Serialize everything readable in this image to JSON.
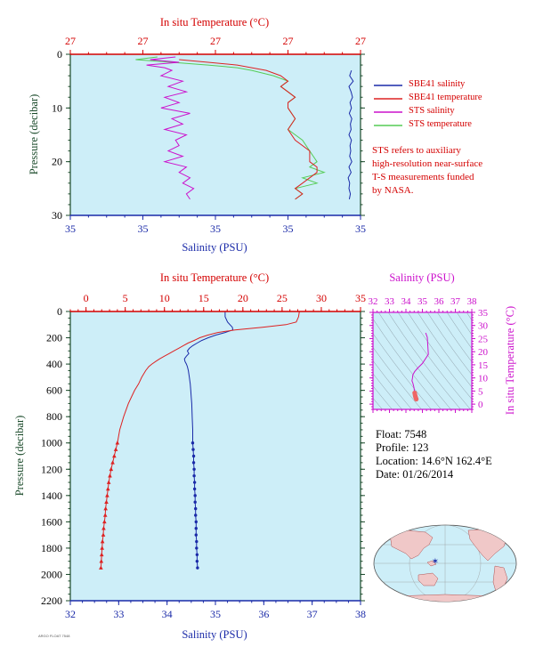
{
  "colors": {
    "salinity": "#1a2aa8",
    "temperature": "#dd2222",
    "sts_salinity": "#cc11cc",
    "sts_temperature": "#55cc55",
    "panel_bg": "#cdeef8",
    "axis_dark": "#1a4a2a",
    "axis_red": "#d40000",
    "axis_blue": "#1a2aa8",
    "axis_magenta": "#cc11cc"
  },
  "float_info": {
    "float": "Float:  7548",
    "profile": "Profile:  123",
    "location": "Location:  14.6°N  162.4°E",
    "date": "Date:  01/26/2014"
  },
  "legend": [
    {
      "label": "SBE41 salinity",
      "color": "#1a2aa8"
    },
    {
      "label": "SBE41 temperature",
      "color": "#dd2222"
    },
    {
      "label": "STS salinity",
      "color": "#cc11cc"
    },
    {
      "label": "STS temperature",
      "color": "#55cc55"
    }
  ],
  "note": [
    "STS refers to auxiliary",
    "high-resolution near-surface",
    "T-S measurements funded",
    "by NASA."
  ],
  "footer_tag": "ARGO FLOAT 7548",
  "chart_data": [
    {
      "type": "line",
      "title": "In situ Temperature (°C)",
      "xlabel": "Salinity (PSU)",
      "ylabel": "Pressure (decibar)",
      "x_ticks": [
        "35",
        "35",
        "35",
        "35",
        "35"
      ],
      "x2_ticks": [
        "27",
        "27",
        "27",
        "27",
        "27"
      ],
      "y_ticks": [
        0,
        10,
        20,
        30
      ],
      "ylim": [
        30,
        0
      ],
      "salinity_xlim": [
        34.98,
        35.06
      ],
      "temperature_xlim": [
        26.8,
        27.2
      ],
      "grid": false,
      "legend": "right",
      "series": [
        {
          "name": "SBE41 salinity",
          "pressure": [
            3,
            4,
            5,
            6,
            7,
            8,
            9,
            10,
            11,
            12,
            13,
            14,
            15,
            16,
            17,
            18,
            19,
            20,
            21,
            22,
            23,
            24,
            25,
            26,
            27
          ],
          "values": [
            35.0575,
            35.057,
            35.058,
            35.0568,
            35.0574,
            35.0578,
            35.0571,
            35.0575,
            35.0569,
            35.0576,
            35.0572,
            35.0574,
            35.0568,
            35.0575,
            35.0571,
            35.0573,
            35.057,
            35.0576,
            35.0568,
            35.0574,
            35.0566,
            35.057,
            35.0568,
            35.0572,
            35.0569
          ]
        },
        {
          "name": "SBE41 temperature",
          "pressure": [
            1,
            1.5,
            2,
            2.5,
            3,
            4,
            5,
            6,
            7,
            8,
            9,
            10,
            12,
            14,
            16,
            18,
            20,
            21,
            22,
            23,
            24,
            25,
            26,
            27
          ],
          "values": [
            26.95,
            26.99,
            27.03,
            27.05,
            27.07,
            27.09,
            27.1,
            27.09,
            27.1,
            27.11,
            27.1,
            27.1,
            27.11,
            27.1,
            27.11,
            27.13,
            27.13,
            27.14,
            27.14,
            27.13,
            27.12,
            27.11,
            27.12,
            27.11
          ]
        },
        {
          "name": "STS salinity",
          "pressure": [
            0.5,
            1,
            1.5,
            2,
            2.5,
            3,
            4,
            5,
            6,
            7,
            8,
            9,
            10,
            11,
            12,
            13,
            14,
            15,
            16,
            17,
            18,
            19,
            20,
            21,
            22,
            23,
            24,
            25,
            26,
            27
          ],
          "values": [
            35.009,
            35.002,
            35.01,
            35.001,
            35.006,
            35.008,
            35.005,
            35.011,
            35.007,
            35.012,
            35.006,
            35.01,
            35.005,
            35.013,
            35.008,
            35.011,
            35.006,
            35.012,
            35.009,
            35.01,
            35.007,
            35.011,
            35.006,
            35.012,
            35.01,
            35.013,
            35.011,
            35.014,
            35.012,
            35.013
          ]
        },
        {
          "name": "STS temperature",
          "pressure": [
            0.5,
            1,
            1.5,
            2,
            2.5,
            3,
            4,
            5,
            6,
            7,
            8,
            9,
            10,
            12,
            14,
            16,
            18,
            20,
            21,
            22,
            23,
            24,
            25,
            26,
            27
          ],
          "values": [
            26.92,
            26.89,
            26.94,
            26.99,
            27.03,
            27.05,
            27.08,
            27.1,
            27.09,
            27.1,
            27.11,
            27.1,
            27.1,
            27.11,
            27.1,
            27.12,
            27.13,
            27.14,
            27.13,
            27.15,
            27.12,
            27.14,
            27.11,
            27.12,
            27.11
          ]
        }
      ]
    },
    {
      "type": "line",
      "title": "In situ Temperature (°C)",
      "xlabel": "Salinity (PSU)",
      "ylabel": "Pressure (decibar)",
      "ylim": [
        2200,
        0
      ],
      "y_ticks": [
        0,
        200,
        400,
        600,
        800,
        1000,
        1200,
        1400,
        1600,
        1800,
        2000,
        2200
      ],
      "salinity_xlim": [
        32,
        38
      ],
      "salinity_ticks": [
        32,
        33,
        34,
        35,
        36,
        37,
        38
      ],
      "temperature_xlim": [
        -2,
        35
      ],
      "temperature_ticks": [
        0,
        5,
        10,
        15,
        20,
        25,
        30,
        35
      ],
      "grid": false,
      "series": [
        {
          "name": "SBE41 salinity",
          "pressure": [
            0,
            40,
            80,
            100,
            120,
            140,
            160,
            180,
            200,
            220,
            240,
            260,
            280,
            300,
            320,
            340,
            360,
            380,
            400,
            420,
            450,
            500,
            550,
            600,
            650,
            700,
            800,
            900,
            1000,
            1050,
            1100,
            1150,
            1200,
            1250,
            1300,
            1350,
            1400,
            1450,
            1500,
            1550,
            1600,
            1650,
            1700,
            1750,
            1800,
            1850,
            1900,
            1950
          ],
          "values": [
            35.2,
            35.2,
            35.25,
            35.3,
            35.35,
            35.36,
            35.2,
            35.0,
            34.85,
            34.72,
            34.62,
            34.53,
            34.46,
            34.42,
            34.45,
            34.4,
            34.36,
            34.37,
            34.4,
            34.42,
            34.44,
            34.46,
            34.48,
            34.49,
            34.5,
            34.51,
            34.52,
            34.53,
            34.53,
            34.54,
            34.55,
            34.55,
            34.56,
            34.56,
            34.57,
            34.57,
            34.58,
            34.58,
            34.59,
            34.59,
            34.6,
            34.6,
            34.6,
            34.61,
            34.61,
            34.62,
            34.62,
            34.63
          ]
        },
        {
          "name": "SBE41 temperature",
          "pressure": [
            0,
            40,
            80,
            100,
            120,
            140,
            160,
            180,
            200,
            220,
            240,
            260,
            280,
            300,
            320,
            340,
            360,
            380,
            400,
            420,
            450,
            500,
            550,
            600,
            650,
            700,
            800,
            900,
            1000,
            1050,
            1100,
            1150,
            1200,
            1250,
            1300,
            1350,
            1400,
            1450,
            1500,
            1550,
            1600,
            1650,
            1700,
            1750,
            1800,
            1850,
            1900,
            1950
          ],
          "values": [
            27.2,
            27.1,
            26.8,
            25.5,
            22.5,
            19.0,
            16.8,
            15.5,
            14.5,
            13.8,
            13.0,
            12.4,
            11.8,
            11.2,
            10.6,
            10.0,
            9.4,
            8.9,
            8.4,
            8.0,
            7.6,
            7.1,
            6.7,
            6.2,
            5.8,
            5.4,
            4.8,
            4.3,
            4.0,
            3.8,
            3.6,
            3.4,
            3.2,
            3.05,
            2.9,
            2.8,
            2.7,
            2.6,
            2.5,
            2.45,
            2.35,
            2.25,
            2.2,
            2.1,
            2.05,
            2.0,
            1.95,
            1.9
          ]
        }
      ]
    },
    {
      "type": "scatter",
      "title": "Salinity (PSU)",
      "ylabel": "In situ Temperature (°C)",
      "x_ticks": [
        32,
        33,
        34,
        35,
        36,
        37,
        38
      ],
      "y_ticks": [
        0,
        5,
        10,
        15,
        20,
        25,
        30,
        35
      ],
      "xlim": [
        32,
        38
      ],
      "ylim": [
        -2,
        35
      ],
      "grid": false,
      "series": [
        {
          "name": "T-S",
          "x": [
            35.2,
            35.3,
            35.36,
            35.0,
            34.72,
            34.53,
            34.42,
            34.4,
            34.37,
            34.42,
            34.46,
            34.49,
            34.51,
            34.53,
            34.55,
            34.57,
            34.59,
            34.61,
            34.63
          ],
          "y": [
            27.2,
            25.5,
            19.0,
            15.5,
            13.8,
            12.4,
            11.2,
            10.0,
            8.9,
            8.0,
            7.1,
            6.2,
            5.4,
            4.3,
            3.6,
            3.05,
            2.6,
            2.2,
            1.9
          ]
        }
      ]
    }
  ]
}
